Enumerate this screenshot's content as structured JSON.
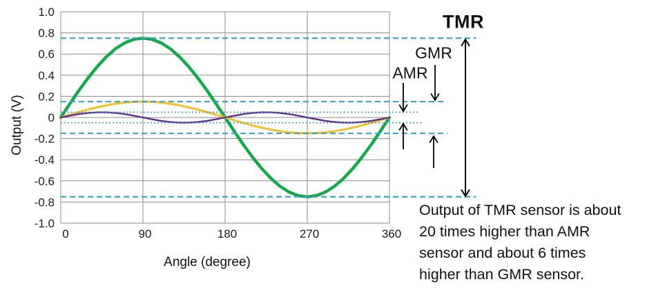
{
  "chart_data": {
    "type": "line",
    "title": "",
    "xlabel": "Angle (degree)",
    "ylabel": "Output (V)",
    "xlim": [
      0,
      360
    ],
    "ylim": [
      -1.0,
      1.0
    ],
    "grid": true,
    "legend_position": "none",
    "x_ticks": [
      0,
      90,
      180,
      270,
      360
    ],
    "x_tick_labels": [
      "0",
      "90",
      "180",
      "270",
      "360"
    ],
    "y_ticks": [
      1.0,
      0.8,
      0.6,
      0.4,
      0.2,
      0,
      -0.2,
      -0.4,
      -0.6,
      -0.8,
      -1.0
    ],
    "y_tick_labels": [
      "1.0",
      "0.8",
      "0.6",
      "0.4",
      "0.2",
      "0",
      "-0.2",
      "-0.4",
      "-0.6",
      "-0.8",
      "-1.0"
    ],
    "x_step_deg": 10,
    "series": [
      {
        "name": "TMR",
        "description": "0.75 * sin(angle), amplitude about 0.75 V",
        "color": "#16A94C",
        "stroke_width": 4.5,
        "amplitude": 0.75,
        "harmonic": 1,
        "values": [
          0,
          0.13,
          0.257,
          0.375,
          0.482,
          0.574,
          0.65,
          0.705,
          0.739,
          0.75,
          0.739,
          0.705,
          0.65,
          0.574,
          0.482,
          0.375,
          0.257,
          0.13,
          0,
          -0.13,
          -0.257,
          -0.375,
          -0.482,
          -0.574,
          -0.65,
          -0.705,
          -0.739,
          -0.75,
          -0.739,
          -0.705,
          -0.65,
          -0.574,
          -0.482,
          -0.375,
          -0.257,
          -0.13,
          0
        ]
      },
      {
        "name": "GMR",
        "description": "0.15 * sin(angle), amplitude about 0.15 V",
        "color": "#F3C02F",
        "stroke_width": 3.2,
        "amplitude": 0.15,
        "harmonic": 1,
        "values": [
          0,
          0.026,
          0.051,
          0.075,
          0.096,
          0.115,
          0.13,
          0.141,
          0.148,
          0.15,
          0.148,
          0.141,
          0.13,
          0.115,
          0.096,
          0.075,
          0.051,
          0.026,
          0,
          -0.026,
          -0.051,
          -0.075,
          -0.096,
          -0.115,
          -0.13,
          -0.141,
          -0.148,
          -0.15,
          -0.148,
          -0.141,
          -0.13,
          -0.115,
          -0.096,
          -0.075,
          -0.051,
          -0.026,
          0
        ]
      },
      {
        "name": "AMR",
        "description": "0.05 * sin(2*angle), amplitude about 0.05 V",
        "color": "#5E2C92",
        "stroke_width": 2.4,
        "amplitude": 0.05,
        "harmonic": 2,
        "values": [
          0,
          0.017,
          0.032,
          0.043,
          0.049,
          0.049,
          0.043,
          0.032,
          0.017,
          0,
          -0.017,
          -0.032,
          -0.043,
          -0.049,
          -0.049,
          -0.043,
          -0.032,
          -0.017,
          0,
          0.017,
          0.032,
          0.043,
          0.049,
          0.049,
          0.043,
          0.032,
          0.017,
          0,
          -0.017,
          -0.032,
          -0.043,
          -0.049,
          -0.049,
          -0.043,
          -0.032,
          -0.017,
          0
        ]
      }
    ],
    "reference_lines": [
      {
        "value": 0.75,
        "style": "dashed"
      },
      {
        "value": -0.75,
        "style": "dashed"
      },
      {
        "value": 0.15,
        "style": "dashed"
      },
      {
        "value": -0.15,
        "style": "dashed"
      },
      {
        "value": 0.05,
        "style": "dotted"
      },
      {
        "value": -0.05,
        "style": "dotted"
      }
    ],
    "reference_color": "#3FA3C5"
  },
  "annotations": {
    "tmr_label": "TMR",
    "gmr_label": "GMR",
    "amr_label": "AMR",
    "note_lines": [
      "Output of TMR sensor is about",
      "20 times higher than AMR",
      "sensor and about 6 times",
      "higher than GMR sensor."
    ]
  }
}
